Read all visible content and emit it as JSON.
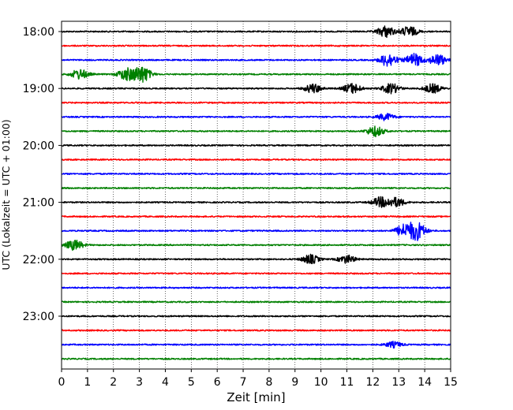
{
  "chart_data": {
    "type": "line",
    "chart_kind": "seismogram (helicorder)",
    "xlabel": "Zeit  [min]",
    "ylabel": "UTC (Lokalzeit = UTC + 01:00)",
    "xlim": [
      0,
      15
    ],
    "x_ticks": [
      0,
      1,
      2,
      3,
      4,
      5,
      6,
      7,
      8,
      9,
      10,
      11,
      12,
      13,
      14,
      15
    ],
    "x_tick_labels": [
      "0",
      "1",
      "2",
      "3",
      "4",
      "5",
      "6",
      "7",
      "8",
      "9",
      "10",
      "11",
      "12",
      "13",
      "14",
      "15"
    ],
    "y_tick_labels": [
      "18:00",
      "19:00",
      "20:00",
      "21:00",
      "22:00",
      "23:00"
    ],
    "vertical_grid": "dotted, at every minute",
    "colors": [
      "#000000",
      "#ff0000",
      "#0000ff",
      "#008000"
    ],
    "traces": [
      {
        "start": "18:00",
        "color": "#000000",
        "bursts": [
          {
            "x": 12.5,
            "amp": 0.5
          },
          {
            "x": 13.4,
            "amp": 0.45
          }
        ]
      },
      {
        "start": "18:15",
        "color": "#ff0000",
        "bursts": []
      },
      {
        "start": "18:30",
        "color": "#0000ff",
        "bursts": [
          {
            "x": 12.6,
            "amp": 0.6
          },
          {
            "x": 13.6,
            "amp": 0.55
          },
          {
            "x": 14.5,
            "amp": 0.5
          }
        ]
      },
      {
        "start": "18:45",
        "color": "#008000",
        "bursts": [
          {
            "x": 0.7,
            "amp": 0.45
          },
          {
            "x": 2.5,
            "amp": 0.55
          },
          {
            "x": 3.1,
            "amp": 0.75
          }
        ]
      },
      {
        "start": "19:00",
        "color": "#000000",
        "bursts": [
          {
            "x": 9.7,
            "amp": 0.4
          },
          {
            "x": 11.2,
            "amp": 0.45
          },
          {
            "x": 12.7,
            "amp": 0.45
          },
          {
            "x": 14.3,
            "amp": 0.4
          }
        ]
      },
      {
        "start": "19:15",
        "color": "#ff0000",
        "bursts": []
      },
      {
        "start": "19:30",
        "color": "#0000ff",
        "bursts": [
          {
            "x": 12.5,
            "amp": 0.3
          }
        ]
      },
      {
        "start": "19:45",
        "color": "#008000",
        "bursts": [
          {
            "x": 12.1,
            "amp": 0.45
          }
        ]
      },
      {
        "start": "20:00",
        "color": "#000000",
        "bursts": []
      },
      {
        "start": "20:15",
        "color": "#ff0000",
        "bursts": []
      },
      {
        "start": "20:30",
        "color": "#0000ff",
        "bursts": []
      },
      {
        "start": "20:45",
        "color": "#008000",
        "bursts": []
      },
      {
        "start": "21:00",
        "color": "#000000",
        "bursts": [
          {
            "x": 12.3,
            "amp": 0.45
          },
          {
            "x": 12.9,
            "amp": 0.4
          }
        ]
      },
      {
        "start": "21:15",
        "color": "#ff0000",
        "bursts": []
      },
      {
        "start": "21:30",
        "color": "#0000ff",
        "bursts": [
          {
            "x": 13.2,
            "amp": 0.55
          },
          {
            "x": 13.7,
            "amp": 0.8
          }
        ]
      },
      {
        "start": "21:45",
        "color": "#008000",
        "bursts": [
          {
            "x": 0.5,
            "amp": 0.45
          }
        ]
      },
      {
        "start": "22:00",
        "color": "#000000",
        "bursts": [
          {
            "x": 9.6,
            "amp": 0.4
          },
          {
            "x": 11.0,
            "amp": 0.35
          }
        ]
      },
      {
        "start": "22:15",
        "color": "#ff0000",
        "bursts": []
      },
      {
        "start": "22:30",
        "color": "#0000ff",
        "bursts": []
      },
      {
        "start": "22:45",
        "color": "#008000",
        "bursts": []
      },
      {
        "start": "23:00",
        "color": "#000000",
        "bursts": []
      },
      {
        "start": "23:15",
        "color": "#ff0000",
        "bursts": []
      },
      {
        "start": "23:30",
        "color": "#0000ff",
        "bursts": [
          {
            "x": 12.8,
            "amp": 0.25
          }
        ]
      },
      {
        "start": "23:45",
        "color": "#008000",
        "bursts": []
      }
    ]
  }
}
